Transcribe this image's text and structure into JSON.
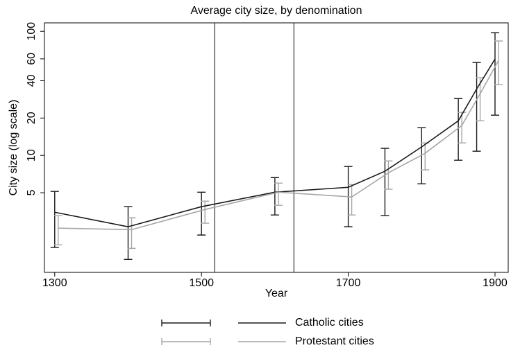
{
  "chart_data": {
    "type": "line",
    "title": "Average city size, by denomination",
    "xlabel": "Year",
    "ylabel": "City size (log scale)",
    "x": [
      1300,
      1400,
      1500,
      1600,
      1700,
      1750,
      1800,
      1850,
      1875,
      1900
    ],
    "series": [
      {
        "name": "Catholic cities",
        "color": "#1a1a1a",
        "values": [
          3.48,
          2.66,
          3.86,
          5.05,
          5.53,
          7.45,
          11.7,
          19.0,
          34.3,
          59.8
        ],
        "lower": [
          1.81,
          1.45,
          2.28,
          3.31,
          2.66,
          3.27,
          5.9,
          9.14,
          10.8,
          21.1
        ],
        "upper": [
          5.12,
          3.86,
          5.05,
          6.62,
          8.14,
          11.4,
          16.7,
          28.7,
          56.1,
          97.5
        ]
      },
      {
        "name": "Protestant cities",
        "color": "#a6a6a6",
        "values": [
          2.59,
          2.52,
          3.66,
          5.05,
          4.62,
          7.24,
          10.4,
          17.4,
          31.4,
          58.2
        ],
        "lower": [
          1.9,
          1.78,
          2.84,
          3.96,
          3.31,
          5.33,
          7.64,
          12.6,
          19.0,
          37.2
        ],
        "upper": [
          3.27,
          3.14,
          4.28,
          5.98,
          5.82,
          9.02,
          12.6,
          22.2,
          42.3,
          83.6
        ]
      }
    ],
    "vlines": [
      1518,
      1626
    ],
    "xlim": [
      1286,
      1918
    ],
    "xticks": [
      1300,
      1500,
      1700,
      1900
    ],
    "ylim": [
      1.14,
      117
    ],
    "yticks": [
      5,
      10,
      20,
      40,
      60,
      100
    ],
    "log_y": true,
    "legend": "bottom"
  }
}
